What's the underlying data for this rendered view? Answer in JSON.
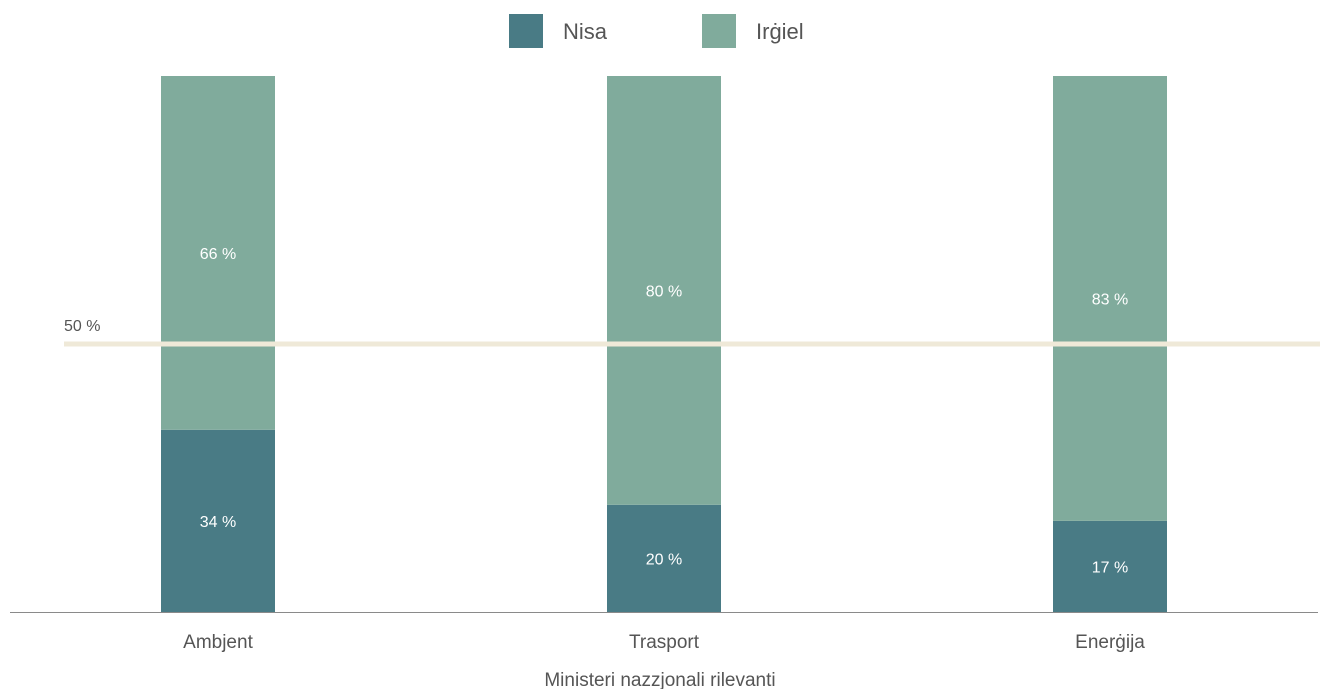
{
  "chart_data": {
    "type": "bar",
    "stacked": true,
    "percent": true,
    "categories": [
      "Ambjent",
      "Trasport",
      "Enerġija"
    ],
    "series": [
      {
        "name": "Nisa",
        "values": [
          34,
          20,
          17
        ],
        "color": "#497b85"
      },
      {
        "name": "Irġiel",
        "values": [
          66,
          80,
          83
        ],
        "color": "#80ab9c"
      }
    ],
    "value_label_suffix": " %",
    "reference_line": {
      "value": 50,
      "label": "50 %",
      "color": "#efe9d8"
    },
    "xlabel": "Ministeri nazzjonali rilevanti",
    "ylabel": "",
    "ylim": [
      0,
      100
    ],
    "grid": false,
    "legend": {
      "position": "top-center"
    },
    "axis_color": "#8a8a8a",
    "text_color": "#555555",
    "inbar_text_color": "#ffffff"
  }
}
